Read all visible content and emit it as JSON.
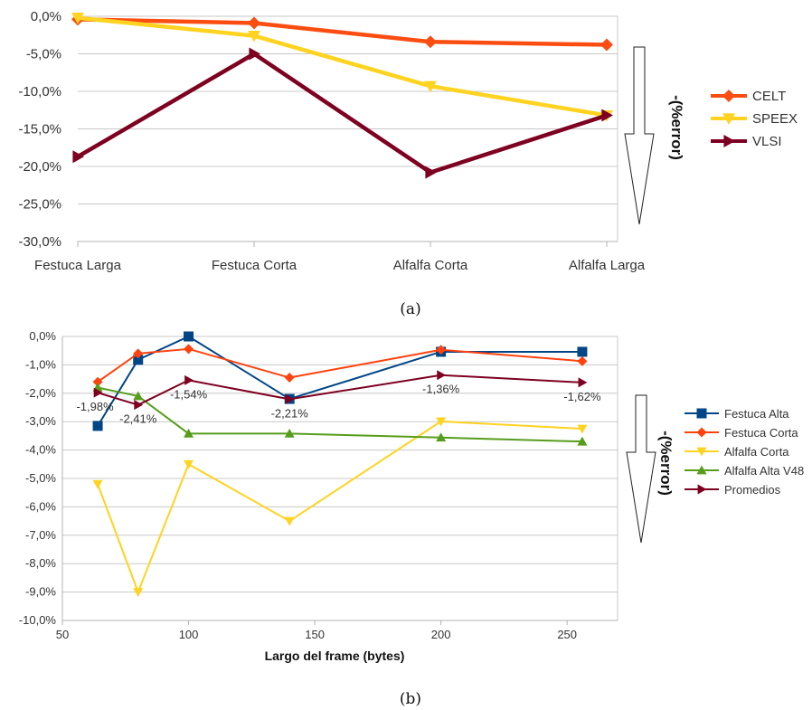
{
  "colors": {
    "CELT": "#fb4d11",
    "SPEEX": "#ffd320",
    "VLSI": "#7e0021",
    "Festuca Alta": "#004586",
    "Festuca Corta": "#ff420e",
    "Alfalfa Corta": "#ffd320",
    "Alfalfa Alta V48": "#579d1c",
    "Promedios": "#7e0021"
  },
  "chart_data": [
    {
      "type": "line",
      "caption": "(a)",
      "categories": [
        "Festuca Larga",
        "Festuca Corta",
        "Alfalfa Corta",
        "Alfalfa Larga"
      ],
      "series": [
        {
          "name": "CELT",
          "marker": "diamond",
          "values": [
            -0.4,
            -0.9,
            -3.4,
            -3.8
          ]
        },
        {
          "name": "SPEEX",
          "marker": "triangle-down",
          "values": [
            -0.2,
            -2.6,
            -9.3,
            -13.2
          ]
        },
        {
          "name": "VLSI",
          "marker": "triangle-right",
          "values": [
            -18.7,
            -5.0,
            -20.8,
            -13.2
          ]
        }
      ],
      "ylim": [
        -30,
        0
      ],
      "yticks": [
        "0,0%",
        "-5,0%",
        "-10,0%",
        "-15,0%",
        "-20,0%",
        "-25,0%",
        "-30,0%"
      ],
      "annotation": "-(%error)",
      "legend": "right",
      "grid": true
    },
    {
      "type": "line",
      "caption": "(b)",
      "xlabel": "Largo del frame (bytes)",
      "xlim": [
        50,
        270
      ],
      "xticks": [
        "50",
        "100",
        "150",
        "200",
        "250"
      ],
      "ylim": [
        -10,
        0
      ],
      "yticks": [
        "0,0%",
        "-1,0%",
        "-2,0%",
        "-3,0%",
        "-4,0%",
        "-5,0%",
        "-6,0%",
        "-7,0%",
        "-8,0%",
        "-9,0%",
        "-10,0%"
      ],
      "x": [
        64,
        80,
        100,
        140,
        200,
        256
      ],
      "series": [
        {
          "name": "Festuca Alta",
          "marker": "square",
          "values": [
            -3.15,
            -0.82,
            0.0,
            -2.2,
            -0.54,
            -0.54
          ]
        },
        {
          "name": "Festuca Corta",
          "marker": "diamond",
          "values": [
            -1.6,
            -0.6,
            -0.44,
            -1.45,
            -0.47,
            -0.87
          ]
        },
        {
          "name": "Alfalfa Corta",
          "marker": "triangle-down",
          "values": [
            -5.2,
            -9.0,
            -4.5,
            -6.5,
            -2.99,
            -3.25
          ]
        },
        {
          "name": "Alfalfa Alta V48",
          "marker": "triangle-up",
          "values": [
            -1.8,
            -2.1,
            -3.42,
            -3.42,
            -3.56,
            -3.7
          ]
        },
        {
          "name": "Promedios",
          "marker": "triangle-right",
          "values": [
            -1.98,
            -2.41,
            -1.54,
            -2.21,
            -1.36,
            -1.62
          ]
        }
      ],
      "data_labels": [
        "-1,98%",
        "-2,41%",
        "-1,54%",
        "-2,21%",
        "-1,36%",
        "-1,62%"
      ],
      "annotation": "-(%error)",
      "legend": "right",
      "grid": true
    }
  ]
}
